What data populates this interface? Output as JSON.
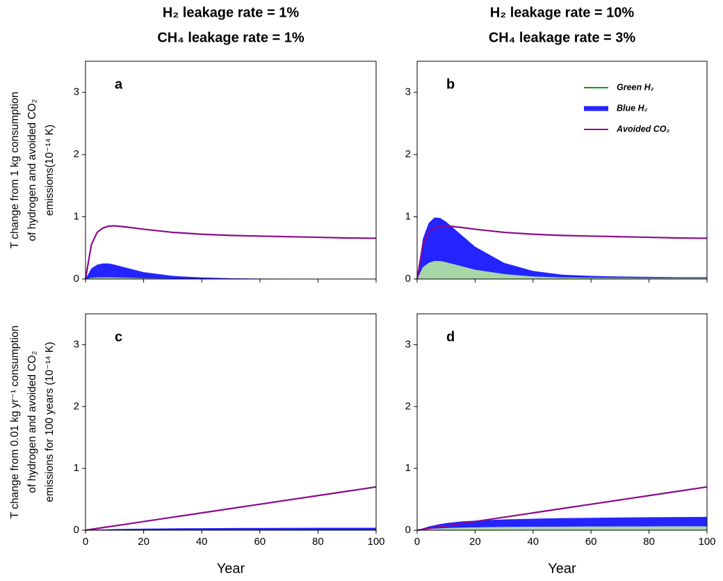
{
  "chart_data": [
    {
      "type": "area",
      "panel_label": "a",
      "title": [
        "H₂ leakage rate = 1%",
        "CH₄ leakage rate = 1%"
      ],
      "ylabel": [
        "T change from 1 kg consumption",
        "of hydrogen and avoided CO₂",
        "emissions(10⁻¹⁴ K)"
      ],
      "x": [
        0,
        2,
        4,
        6,
        8,
        10,
        15,
        20,
        30,
        40,
        50,
        60,
        70,
        80,
        90,
        100
      ],
      "xlim": [
        0,
        100
      ],
      "xticks": [
        0,
        20,
        40,
        60,
        80,
        100
      ],
      "ylim": [
        0,
        3.5
      ],
      "yticks": [
        0,
        1,
        2,
        3
      ],
      "series": [
        {
          "name": "Blue H₂",
          "color": "#2424ff",
          "fill": true,
          "values": [
            0,
            0.17,
            0.23,
            0.25,
            0.25,
            0.23,
            0.17,
            0.11,
            0.05,
            0.025,
            0.012,
            0.007,
            0.005,
            0.004,
            0.003,
            0.003
          ]
        },
        {
          "name": "Green H₂",
          "color": "#a9d6a9",
          "fill": true,
          "values": [
            0,
            0.02,
            0.025,
            0.027,
            0.027,
            0.025,
            0.02,
            0.013,
            0.006,
            0.003,
            0.002,
            0.001,
            0.001,
            0.001,
            0.001,
            0.001
          ]
        },
        {
          "name": "Avoided CO₂",
          "color": "#8b0a8b",
          "fill": false,
          "values": [
            0,
            0.55,
            0.75,
            0.82,
            0.85,
            0.855,
            0.83,
            0.8,
            0.75,
            0.72,
            0.7,
            0.69,
            0.68,
            0.67,
            0.66,
            0.655
          ]
        }
      ]
    },
    {
      "type": "area",
      "panel_label": "b",
      "title": [
        "H₂ leakage rate = 10%",
        "CH₄ leakage rate = 3%"
      ],
      "legend": "upper right",
      "x": [
        0,
        2,
        4,
        6,
        8,
        10,
        15,
        20,
        30,
        40,
        50,
        60,
        70,
        80,
        90,
        100
      ],
      "xlim": [
        0,
        100
      ],
      "xticks": [
        0,
        20,
        40,
        60,
        80,
        100
      ],
      "ylim": [
        0,
        3.5
      ],
      "yticks": [
        0,
        1,
        2,
        3
      ],
      "series": [
        {
          "name": "Blue H₂",
          "color": "#2424ff",
          "fill": true,
          "values": [
            0,
            0.65,
            0.9,
            0.99,
            0.98,
            0.92,
            0.72,
            0.52,
            0.26,
            0.13,
            0.07,
            0.05,
            0.04,
            0.035,
            0.03,
            0.03
          ]
        },
        {
          "name": "Green H₂",
          "color": "#a9d6a9",
          "line_color": "#1f8f1f",
          "fill": true,
          "values": [
            0,
            0.19,
            0.26,
            0.29,
            0.29,
            0.27,
            0.21,
            0.15,
            0.08,
            0.04,
            0.025,
            0.02,
            0.018,
            0.016,
            0.015,
            0.015
          ]
        },
        {
          "name": "Avoided CO₂",
          "color": "#8b0a8b",
          "fill": false,
          "values": [
            0,
            0.55,
            0.75,
            0.82,
            0.85,
            0.855,
            0.83,
            0.8,
            0.75,
            0.72,
            0.7,
            0.69,
            0.68,
            0.67,
            0.66,
            0.655
          ]
        }
      ]
    },
    {
      "type": "area",
      "panel_label": "c",
      "xlabel": "Year",
      "ylabel": [
        "T change from 0.01 kg yr⁻¹ consumption",
        "of hydrogen and avoided CO₂",
        "emissions for 100 years (10⁻¹⁴ K)"
      ],
      "x": [
        0,
        2,
        4,
        6,
        8,
        10,
        15,
        20,
        30,
        40,
        50,
        60,
        70,
        80,
        90,
        100
      ],
      "xlim": [
        0,
        100
      ],
      "xticks": [
        0,
        20,
        40,
        60,
        80,
        100
      ],
      "ylim": [
        0,
        3.5
      ],
      "yticks": [
        0,
        1,
        2,
        3
      ],
      "series": [
        {
          "name": "Blue H₂",
          "color": "#2424ff",
          "fill": true,
          "values": [
            0,
            0.005,
            0.01,
            0.013,
            0.016,
            0.018,
            0.022,
            0.025,
            0.03,
            0.033,
            0.035,
            0.037,
            0.038,
            0.039,
            0.04,
            0.04
          ]
        },
        {
          "name": "Green H₂",
          "color": "#a9d6a9",
          "fill": true,
          "values": [
            0,
            0.001,
            0.002,
            0.002,
            0.003,
            0.003,
            0.003,
            0.004,
            0.004,
            0.005,
            0.005,
            0.005,
            0.005,
            0.005,
            0.005,
            0.005
          ]
        },
        {
          "name": "Avoided CO₂",
          "color": "#8b0a8b",
          "fill": false,
          "values": [
            0,
            0.014,
            0.028,
            0.042,
            0.056,
            0.07,
            0.105,
            0.14,
            0.21,
            0.28,
            0.35,
            0.42,
            0.49,
            0.56,
            0.63,
            0.7
          ]
        }
      ]
    },
    {
      "type": "area",
      "panel_label": "d",
      "xlabel": "Year",
      "x": [
        0,
        2,
        4,
        6,
        8,
        10,
        15,
        20,
        30,
        40,
        50,
        60,
        70,
        80,
        90,
        100
      ],
      "xlim": [
        0,
        100
      ],
      "xticks": [
        0,
        20,
        40,
        60,
        80,
        100
      ],
      "ylim": [
        0,
        3.5
      ],
      "yticks": [
        0,
        1,
        2,
        3
      ],
      "series": [
        {
          "name": "Blue H₂",
          "color": "#2424ff",
          "fill": true,
          "values": [
            0,
            0.03,
            0.06,
            0.08,
            0.1,
            0.115,
            0.14,
            0.155,
            0.175,
            0.185,
            0.195,
            0.2,
            0.205,
            0.21,
            0.212,
            0.215
          ]
        },
        {
          "name": "Green H₂",
          "color": "#a9d6a9",
          "fill": true,
          "values": [
            0,
            0.01,
            0.02,
            0.025,
            0.03,
            0.035,
            0.042,
            0.047,
            0.053,
            0.056,
            0.058,
            0.06,
            0.061,
            0.062,
            0.063,
            0.064
          ]
        },
        {
          "name": "Avoided CO₂",
          "color": "#8b0a8b",
          "fill": false,
          "values": [
            0,
            0.014,
            0.028,
            0.042,
            0.056,
            0.07,
            0.105,
            0.14,
            0.21,
            0.28,
            0.35,
            0.42,
            0.49,
            0.56,
            0.63,
            0.7
          ]
        }
      ]
    }
  ]
}
